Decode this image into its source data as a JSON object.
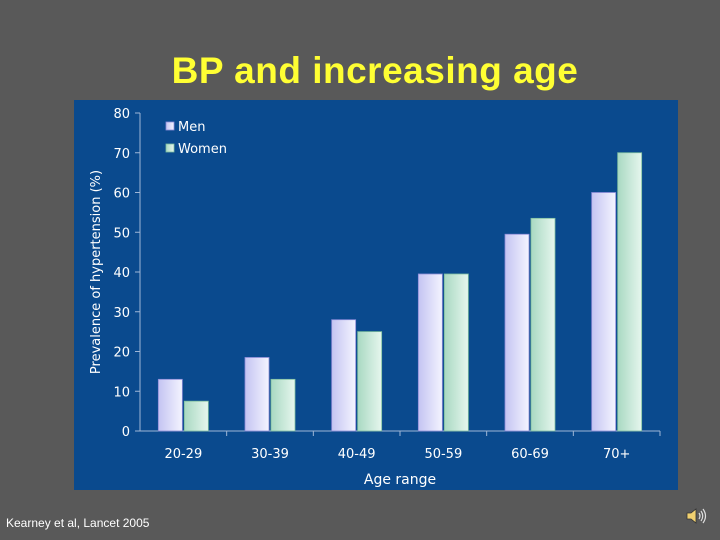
{
  "slide": {
    "title": "BP and increasing age",
    "citation": "Kearney et al, Lancet 2005",
    "icons": [
      "speaker-icon"
    ]
  },
  "colors": {
    "background": "#595959",
    "title": "#ffff33",
    "chart_bg": "#0a4a8e",
    "men": "#dcdcf7",
    "women": "#c8e8d8",
    "text": "#ffffff"
  },
  "chart_data": {
    "type": "bar",
    "title": "",
    "xlabel": "Age range",
    "ylabel": "Prevalence of hypertension (%)",
    "ylim": [
      0,
      80
    ],
    "yticks": [
      0,
      10,
      20,
      30,
      40,
      50,
      60,
      70,
      80
    ],
    "categories": [
      "20-29",
      "30-39",
      "40-49",
      "50-59",
      "60-69",
      "70+"
    ],
    "legend_position": "top-left",
    "series": [
      {
        "name": "Men",
        "values": [
          13,
          18.5,
          28,
          39.5,
          49.5,
          60
        ]
      },
      {
        "name": "Women",
        "values": [
          7.5,
          13,
          25,
          39.5,
          53.5,
          70
        ]
      }
    ]
  }
}
